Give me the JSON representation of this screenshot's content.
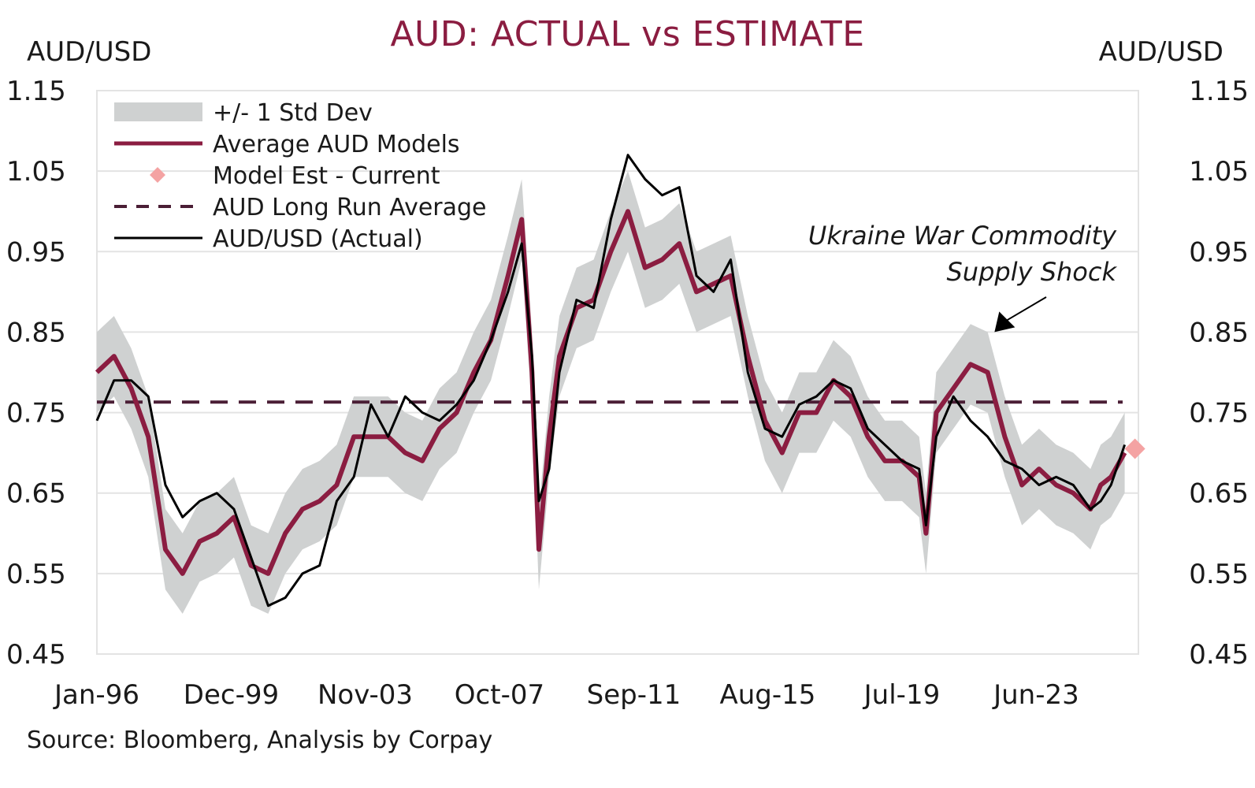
{
  "chart_data": {
    "type": "line",
    "title": "AUD: ACTUAL vs ESTIMATE",
    "ylabel_left": "AUD/USD",
    "ylabel_right": "AUD/USD",
    "xlabel": "",
    "ylim": [
      0.45,
      1.15
    ],
    "yticks": [
      0.45,
      0.55,
      0.65,
      0.75,
      0.85,
      0.95,
      1.05,
      1.15
    ],
    "ytick_labels": [
      "0.45",
      "0.55",
      "0.65",
      "0.75",
      "0.85",
      "0.95",
      "1.05",
      "1.15"
    ],
    "xlim": [
      1996.0,
      2026.4
    ],
    "xticks": [
      1996.0,
      1999.92,
      2003.83,
      2007.75,
      2011.67,
      2015.58,
      2019.5,
      2023.42
    ],
    "xtick_labels": [
      "Jan-96",
      "Dec-99",
      "Nov-03",
      "Oct-07",
      "Sep-11",
      "Aug-15",
      "Jul-19",
      "Jun-23"
    ],
    "grid": "horizontal",
    "legend": "top-left",
    "source": "Source: Bloomberg, Analysis by Corpay",
    "x": [
      1996.0,
      1996.5,
      1997.0,
      1997.5,
      1998.0,
      1998.5,
      1999.0,
      1999.5,
      2000.0,
      2000.5,
      2001.0,
      2001.5,
      2002.0,
      2002.5,
      2003.0,
      2003.5,
      2004.0,
      2004.5,
      2005.0,
      2005.5,
      2006.0,
      2006.5,
      2007.0,
      2007.5,
      2008.0,
      2008.4,
      2008.7,
      2008.9,
      2009.2,
      2009.5,
      2010.0,
      2010.5,
      2011.0,
      2011.5,
      2012.0,
      2012.5,
      2013.0,
      2013.5,
      2014.0,
      2014.5,
      2015.0,
      2015.5,
      2016.0,
      2016.5,
      2017.0,
      2017.5,
      2018.0,
      2018.5,
      2019.0,
      2019.5,
      2020.0,
      2020.2,
      2020.5,
      2021.0,
      2021.5,
      2022.0,
      2022.5,
      2023.0,
      2023.5,
      2024.0,
      2024.5,
      2025.0,
      2025.3,
      2025.6,
      2026.0
    ],
    "series": [
      {
        "name": "AUD/USD (Actual)",
        "color": "#000000",
        "values": [
          0.74,
          0.79,
          0.79,
          0.77,
          0.66,
          0.62,
          0.64,
          0.65,
          0.63,
          0.57,
          0.51,
          0.52,
          0.55,
          0.56,
          0.64,
          0.67,
          0.76,
          0.72,
          0.77,
          0.75,
          0.74,
          0.76,
          0.79,
          0.84,
          0.9,
          0.96,
          0.82,
          0.64,
          0.68,
          0.8,
          0.89,
          0.88,
          0.99,
          1.07,
          1.04,
          1.02,
          1.03,
          0.92,
          0.9,
          0.94,
          0.8,
          0.73,
          0.72,
          0.76,
          0.77,
          0.79,
          0.78,
          0.73,
          0.71,
          0.69,
          0.68,
          0.61,
          0.72,
          0.77,
          0.74,
          0.72,
          0.69,
          0.68,
          0.66,
          0.67,
          0.66,
          0.63,
          0.64,
          0.66,
          0.71
        ]
      },
      {
        "name": "Average AUD Models",
        "color": "#8b1d41",
        "values": [
          0.8,
          0.82,
          0.78,
          0.72,
          0.58,
          0.55,
          0.59,
          0.6,
          0.62,
          0.56,
          0.55,
          0.6,
          0.63,
          0.64,
          0.66,
          0.72,
          0.72,
          0.72,
          0.7,
          0.69,
          0.73,
          0.75,
          0.8,
          0.84,
          0.92,
          0.99,
          0.8,
          0.58,
          0.72,
          0.82,
          0.88,
          0.89,
          0.95,
          1.0,
          0.93,
          0.94,
          0.96,
          0.9,
          0.91,
          0.92,
          0.82,
          0.74,
          0.7,
          0.75,
          0.75,
          0.79,
          0.77,
          0.72,
          0.69,
          0.69,
          0.67,
          0.6,
          0.75,
          0.78,
          0.81,
          0.8,
          0.72,
          0.66,
          0.68,
          0.66,
          0.65,
          0.63,
          0.66,
          0.67,
          0.7
        ]
      }
    ],
    "band": {
      "name": "+/- 1 Std Dev",
      "color": "#cfd1d1",
      "half_width": 0.05
    },
    "reference_line": {
      "name": "AUD Long Run Average",
      "value": 0.763,
      "color": "#4a1e35",
      "style": "dashed"
    },
    "current_estimate": {
      "name": "Model Est - Current",
      "x": 2026.3,
      "value": 0.705,
      "color": "#f4a3a3"
    },
    "annotations": [
      {
        "text_lines": [
          "Ukraine War Commodity",
          "Supply Shock"
        ],
        "points_to_x": 2022.2,
        "points_to_value": 0.85
      }
    ]
  },
  "legend_items": [
    {
      "label": "+/- 1 Std Dev",
      "kind": "band"
    },
    {
      "label": "Average AUD Models",
      "kind": "line"
    },
    {
      "label": "Model Est - Current",
      "kind": "diamond"
    },
    {
      "label": "AUD Long Run Average",
      "kind": "dashed"
    },
    {
      "label": "AUD/USD (Actual)",
      "kind": "thin-line"
    }
  ]
}
